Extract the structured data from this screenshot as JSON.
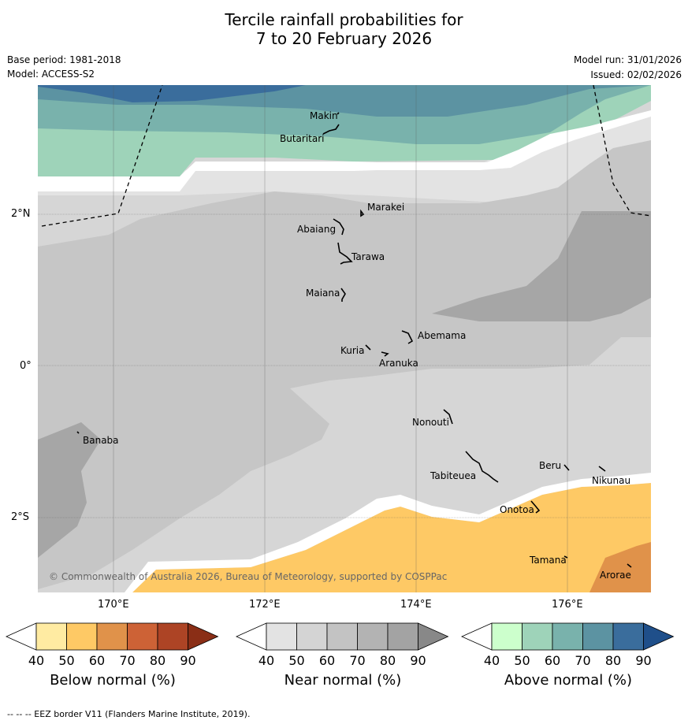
{
  "header": {
    "title_line1": "Tercile rainfall probabilities for",
    "title_line2": "7 to 20 February 2026",
    "base_period": "Base period: 1981-2018",
    "model": "Model: ACCESS-S2",
    "model_run": "Model run: 31/01/2026",
    "issued": "Issued: 02/02/2026"
  },
  "map": {
    "copyright": "© Commonwealth of Australia 2026, Bureau of Meteorology, supported by COSPPac",
    "lat_ticks": [
      "2°N",
      "0°",
      "2°S"
    ],
    "lon_ticks": [
      "170°E",
      "172°E",
      "174°E",
      "176°E"
    ],
    "places": [
      {
        "name": "Makin"
      },
      {
        "name": "Butaritari"
      },
      {
        "name": "Marakei"
      },
      {
        "name": "Abaiang"
      },
      {
        "name": "Tarawa"
      },
      {
        "name": "Maiana"
      },
      {
        "name": "Abemama"
      },
      {
        "name": "Kuria"
      },
      {
        "name": "Aranuka"
      },
      {
        "name": "Banaba"
      },
      {
        "name": "Nonouti"
      },
      {
        "name": "Tabiteuea"
      },
      {
        "name": "Beru"
      },
      {
        "name": "Nikunau"
      },
      {
        "name": "Onotoa"
      },
      {
        "name": "Tamana"
      },
      {
        "name": "Arorae"
      }
    ]
  },
  "colorbars": [
    {
      "label": "Below normal (%)",
      "ticks": [
        "40",
        "50",
        "60",
        "70",
        "80",
        "90"
      ],
      "colors": [
        "#ffffff",
        "#ffeba2",
        "#fec965",
        "#e0924a",
        "#cd6236",
        "#ad4425",
        "#8a2e16"
      ]
    },
    {
      "label": "Near normal (%)",
      "ticks": [
        "40",
        "50",
        "60",
        "70",
        "80",
        "90"
      ],
      "colors": [
        "#ffffff",
        "#e3e3e3",
        "#d4d4d4",
        "#c3c3c3",
        "#b3b3b3",
        "#a3a3a3",
        "#888888"
      ]
    },
    {
      "label": "Above normal (%)",
      "ticks": [
        "40",
        "50",
        "60",
        "70",
        "80",
        "90"
      ],
      "colors": [
        "#ffffff",
        "#ccffcc",
        "#9ed3b9",
        "#79b2ac",
        "#5c93a2",
        "#3a6d9c",
        "#1f4f8a"
      ]
    }
  ],
  "footer": {
    "eez_note": "--  --  -- EEZ border V11 (Flanders Marine Institute, 2019)."
  }
}
